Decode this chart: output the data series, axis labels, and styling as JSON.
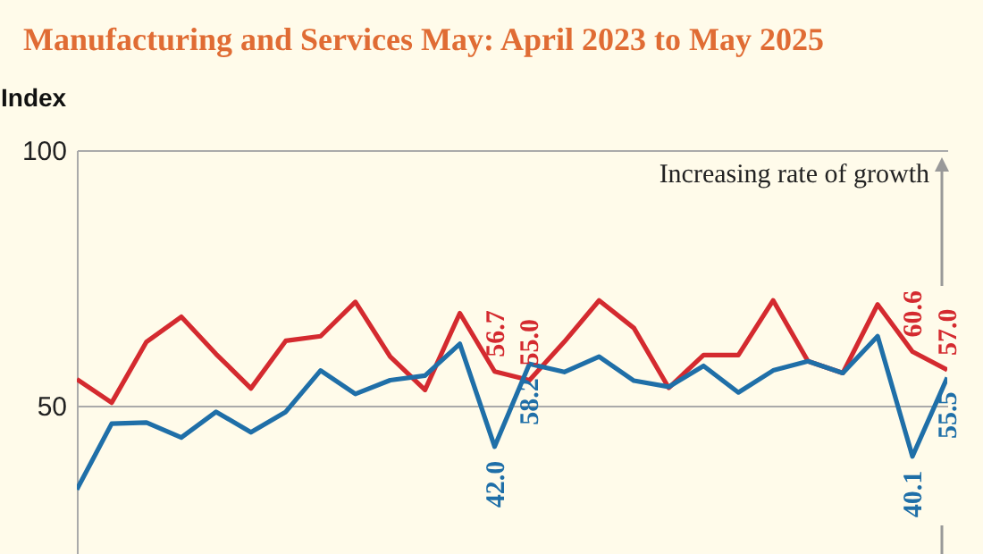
{
  "chart_data": {
    "type": "line",
    "title": "Manufacturing and Services May: April 2023 to May 2025",
    "ylabel": "Index",
    "categories": [
      null,
      null,
      null,
      null,
      null,
      null,
      null,
      null,
      null,
      null,
      null,
      null,
      null,
      null,
      null,
      null,
      null,
      null,
      null,
      null,
      null,
      null,
      null,
      null,
      null,
      null
    ],
    "series": [
      {
        "color": "#d42a2f",
        "values": [
          55.2,
          50.6,
          62.5,
          67.4,
          60.1,
          53.4,
          62.7,
          63.6,
          70.3,
          59.6,
          53.1,
          68.1,
          56.7,
          55.0,
          62.5,
          70.6,
          65.2,
          53.5,
          59.9,
          59.9,
          70.6,
          58.7,
          56.4,
          69.8,
          60.6,
          57.0
        ],
        "value_labels": [
          null,
          null,
          null,
          null,
          null,
          null,
          null,
          null,
          null,
          null,
          null,
          null,
          "56.7",
          "55.0",
          null,
          null,
          null,
          null,
          null,
          null,
          null,
          null,
          null,
          null,
          "60.6",
          "57.0"
        ]
      },
      {
        "color": "#1f6fa8",
        "values": [
          33.6,
          46.5,
          46.7,
          43.8,
          48.8,
          44.8,
          48.8,
          56.9,
          52.3,
          55.0,
          55.9,
          62.1,
          42.0,
          58.2,
          56.6,
          59.6,
          54.9,
          53.7,
          57.8,
          52.6,
          56.9,
          58.7,
          56.4,
          63.6,
          40.1,
          55.5
        ],
        "value_labels": [
          null,
          null,
          null,
          null,
          null,
          null,
          null,
          null,
          null,
          null,
          null,
          null,
          "42.0",
          "58.2",
          null,
          null,
          null,
          null,
          null,
          null,
          null,
          null,
          null,
          null,
          "40.1",
          "55.5"
        ]
      }
    ],
    "ylim": [
      21,
      100
    ],
    "yticks": [
      50,
      100
    ],
    "grid": "y",
    "annotations": [
      "Increasing rate of growth"
    ]
  }
}
